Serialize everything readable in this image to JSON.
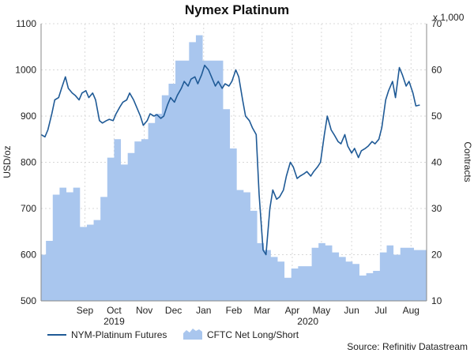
{
  "chart_data": {
    "type": "line",
    "title": "Nymex Platinum",
    "ylabel": "USD/oz",
    "y2label": "Contracts",
    "y2_multiplier": "x 1,000",
    "ylim": [
      500,
      1100
    ],
    "y2lim": [
      10,
      70
    ],
    "yticks": [
      500,
      600,
      700,
      800,
      900,
      1000,
      1100
    ],
    "y2ticks": [
      10,
      20,
      30,
      40,
      50,
      60,
      70
    ],
    "xlim": [
      "2019-08-01",
      "2020-08-31"
    ],
    "month_labels": [
      {
        "label": "Sep",
        "date": "2019-09-15"
      },
      {
        "label": "Oct",
        "date": "2019-10-15"
      },
      {
        "label": "Nov",
        "date": "2019-11-15"
      },
      {
        "label": "Dec",
        "date": "2019-12-15"
      },
      {
        "label": "Jan",
        "date": "2020-01-15"
      },
      {
        "label": "Feb",
        "date": "2020-02-15"
      },
      {
        "label": "Mar",
        "date": "2020-03-15"
      },
      {
        "label": "Apr",
        "date": "2020-04-15"
      },
      {
        "label": "May",
        "date": "2020-05-15"
      },
      {
        "label": "Jun",
        "date": "2020-06-15"
      },
      {
        "label": "Jul",
        "date": "2020-07-15"
      },
      {
        "label": "Aug",
        "date": "2020-08-15"
      }
    ],
    "year_labels": [
      {
        "label": "2019",
        "date": "2019-10-15"
      },
      {
        "label": "2020",
        "date": "2020-05-01"
      }
    ],
    "series": [
      {
        "name": "NYM-Platinum Futures",
        "kind": "line",
        "axis": "left",
        "color": "#1f5a96",
        "points": [
          [
            "2019-08-01",
            860
          ],
          [
            "2019-08-05",
            855
          ],
          [
            "2019-08-08",
            870
          ],
          [
            "2019-08-12",
            905
          ],
          [
            "2019-08-15",
            935
          ],
          [
            "2019-08-19",
            940
          ],
          [
            "2019-08-22",
            960
          ],
          [
            "2019-08-26",
            985
          ],
          [
            "2019-08-29",
            960
          ],
          [
            "2019-09-02",
            950
          ],
          [
            "2019-09-05",
            945
          ],
          [
            "2019-09-09",
            935
          ],
          [
            "2019-09-12",
            950
          ],
          [
            "2019-09-16",
            955
          ],
          [
            "2019-09-19",
            940
          ],
          [
            "2019-09-23",
            950
          ],
          [
            "2019-09-26",
            935
          ],
          [
            "2019-09-30",
            890
          ],
          [
            "2019-10-03",
            885
          ],
          [
            "2019-10-07",
            890
          ],
          [
            "2019-10-10",
            893
          ],
          [
            "2019-10-14",
            890
          ],
          [
            "2019-10-17",
            905
          ],
          [
            "2019-10-21",
            920
          ],
          [
            "2019-10-24",
            930
          ],
          [
            "2019-10-28",
            935
          ],
          [
            "2019-10-31",
            950
          ],
          [
            "2019-11-04",
            935
          ],
          [
            "2019-11-07",
            920
          ],
          [
            "2019-11-11",
            900
          ],
          [
            "2019-11-14",
            880
          ],
          [
            "2019-11-18",
            890
          ],
          [
            "2019-11-21",
            905
          ],
          [
            "2019-11-25",
            900
          ],
          [
            "2019-11-28",
            903
          ],
          [
            "2019-12-02",
            895
          ],
          [
            "2019-12-05",
            900
          ],
          [
            "2019-12-09",
            925
          ],
          [
            "2019-12-12",
            940
          ],
          [
            "2019-12-16",
            930
          ],
          [
            "2019-12-19",
            945
          ],
          [
            "2019-12-23",
            960
          ],
          [
            "2019-12-26",
            975
          ],
          [
            "2019-12-30",
            965
          ],
          [
            "2020-01-02",
            980
          ],
          [
            "2020-01-06",
            985
          ],
          [
            "2020-01-09",
            970
          ],
          [
            "2020-01-13",
            990
          ],
          [
            "2020-01-16",
            1010
          ],
          [
            "2020-01-20",
            1000
          ],
          [
            "2020-01-23",
            985
          ],
          [
            "2020-01-27",
            965
          ],
          [
            "2020-01-30",
            975
          ],
          [
            "2020-02-03",
            960
          ],
          [
            "2020-02-06",
            970
          ],
          [
            "2020-02-10",
            965
          ],
          [
            "2020-02-13",
            975
          ],
          [
            "2020-02-17",
            1000
          ],
          [
            "2020-02-20",
            985
          ],
          [
            "2020-02-24",
            935
          ],
          [
            "2020-02-27",
            900
          ],
          [
            "2020-03-02",
            890
          ],
          [
            "2020-03-05",
            875
          ],
          [
            "2020-03-09",
            860
          ],
          [
            "2020-03-12",
            730
          ],
          [
            "2020-03-16",
            610
          ],
          [
            "2020-03-19",
            600
          ],
          [
            "2020-03-23",
            700
          ],
          [
            "2020-03-26",
            740
          ],
          [
            "2020-03-30",
            720
          ],
          [
            "2020-04-02",
            725
          ],
          [
            "2020-04-06",
            740
          ],
          [
            "2020-04-09",
            770
          ],
          [
            "2020-04-13",
            800
          ],
          [
            "2020-04-16",
            790
          ],
          [
            "2020-04-20",
            765
          ],
          [
            "2020-04-23",
            770
          ],
          [
            "2020-04-27",
            775
          ],
          [
            "2020-04-30",
            780
          ],
          [
            "2020-05-04",
            770
          ],
          [
            "2020-05-07",
            780
          ],
          [
            "2020-05-11",
            790
          ],
          [
            "2020-05-14",
            800
          ],
          [
            "2020-05-18",
            860
          ],
          [
            "2020-05-21",
            900
          ],
          [
            "2020-05-25",
            870
          ],
          [
            "2020-05-28",
            860
          ],
          [
            "2020-06-01",
            845
          ],
          [
            "2020-06-04",
            840
          ],
          [
            "2020-06-08",
            860
          ],
          [
            "2020-06-11",
            835
          ],
          [
            "2020-06-15",
            820
          ],
          [
            "2020-06-18",
            830
          ],
          [
            "2020-06-22",
            810
          ],
          [
            "2020-06-25",
            825
          ],
          [
            "2020-06-29",
            830
          ],
          [
            "2020-07-02",
            835
          ],
          [
            "2020-07-06",
            845
          ],
          [
            "2020-07-09",
            840
          ],
          [
            "2020-07-13",
            850
          ],
          [
            "2020-07-16",
            875
          ],
          [
            "2020-07-20",
            935
          ],
          [
            "2020-07-23",
            955
          ],
          [
            "2020-07-27",
            975
          ],
          [
            "2020-07-30",
            940
          ],
          [
            "2020-08-03",
            1005
          ],
          [
            "2020-08-06",
            990
          ],
          [
            "2020-08-10",
            965
          ],
          [
            "2020-08-13",
            975
          ],
          [
            "2020-08-17",
            950
          ],
          [
            "2020-08-20",
            922
          ],
          [
            "2020-08-24",
            924
          ]
        ]
      },
      {
        "name": "CFTC Net Long/Short",
        "kind": "area",
        "axis": "right",
        "color": "#a9c6ee",
        "points": [
          [
            "2019-08-01",
            20
          ],
          [
            "2019-08-06",
            23
          ],
          [
            "2019-08-13",
            33
          ],
          [
            "2019-08-20",
            34.5
          ],
          [
            "2019-08-27",
            33.5
          ],
          [
            "2019-09-03",
            34.5
          ],
          [
            "2019-09-10",
            26
          ],
          [
            "2019-09-17",
            26.5
          ],
          [
            "2019-09-24",
            27.5
          ],
          [
            "2019-10-01",
            32.5
          ],
          [
            "2019-10-08",
            41
          ],
          [
            "2019-10-15",
            45
          ],
          [
            "2019-10-22",
            39.5
          ],
          [
            "2019-10-29",
            42
          ],
          [
            "2019-11-05",
            44.5
          ],
          [
            "2019-11-12",
            45
          ],
          [
            "2019-11-19",
            48.5
          ],
          [
            "2019-11-26",
            50.5
          ],
          [
            "2019-12-03",
            54.5
          ],
          [
            "2019-12-10",
            57
          ],
          [
            "2019-12-17",
            62
          ],
          [
            "2019-12-24",
            62
          ],
          [
            "2019-12-31",
            66
          ],
          [
            "2020-01-07",
            67.5
          ],
          [
            "2020-01-14",
            62
          ],
          [
            "2020-01-21",
            62
          ],
          [
            "2020-01-28",
            62
          ],
          [
            "2020-02-04",
            51.5
          ],
          [
            "2020-02-11",
            43
          ],
          [
            "2020-02-18",
            34
          ],
          [
            "2020-02-25",
            33.5
          ],
          [
            "2020-03-03",
            29.5
          ],
          [
            "2020-03-10",
            22.5
          ],
          [
            "2020-03-17",
            21
          ],
          [
            "2020-03-24",
            19.5
          ],
          [
            "2020-03-31",
            18.5
          ],
          [
            "2020-04-07",
            15
          ],
          [
            "2020-04-14",
            17
          ],
          [
            "2020-04-21",
            17.5
          ],
          [
            "2020-04-28",
            17.5
          ],
          [
            "2020-05-05",
            21.5
          ],
          [
            "2020-05-12",
            22.5
          ],
          [
            "2020-05-19",
            22
          ],
          [
            "2020-05-26",
            20.5
          ],
          [
            "2020-06-02",
            19.5
          ],
          [
            "2020-06-09",
            18.5
          ],
          [
            "2020-06-16",
            18
          ],
          [
            "2020-06-23",
            15.5
          ],
          [
            "2020-06-30",
            16
          ],
          [
            "2020-07-07",
            16.5
          ],
          [
            "2020-07-14",
            20.5
          ],
          [
            "2020-07-21",
            22
          ],
          [
            "2020-07-28",
            20
          ],
          [
            "2020-08-04",
            21.5
          ],
          [
            "2020-08-11",
            21.5
          ],
          [
            "2020-08-18",
            21
          ],
          [
            "2020-08-25",
            21
          ]
        ]
      }
    ],
    "legend_position": "bottom-left",
    "grid": true,
    "source": "Source: Refinitiv Datastream"
  }
}
